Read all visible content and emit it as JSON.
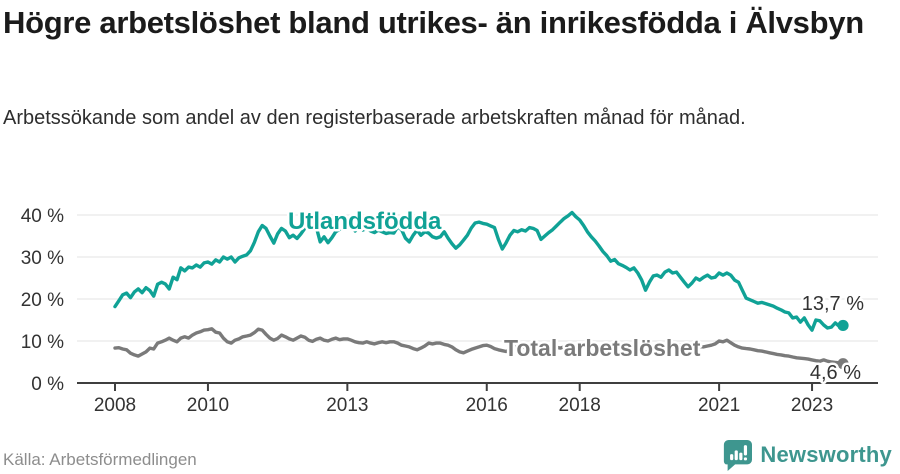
{
  "header": {
    "title": "Högre arbetslöshet bland utrikes- än inrikesfödda i Älvsbyn",
    "subtitle": "Arbetssökande som andel av den registerbaserade arbetskraften månad för månad."
  },
  "footer": {
    "source": "Källa: Arbetsförmedlingen",
    "brand": "Newsworthy"
  },
  "colors": {
    "accent_teal": "#10A296",
    "series_gray": "#7A7A7A",
    "logo_teal": "#3E968F",
    "axis_dark": "#3f3f3f",
    "gridline": "#e3e3e3",
    "tick_label": "#333333"
  },
  "chart_data": {
    "type": "line",
    "unit": "%",
    "x_months_start": "2008-01",
    "x_months_end": "2023-09",
    "x_tick_years": [
      2008,
      2010,
      2013,
      2016,
      2018,
      2021,
      2023
    ],
    "x_tick_labels": [
      "2008",
      "2010",
      "2013",
      "2016",
      "2018",
      "2021",
      "2023"
    ],
    "y_ticks": [
      0,
      10,
      20,
      30,
      40
    ],
    "y_tick_suffix": " %",
    "ylim": [
      0,
      42
    ],
    "grid": true,
    "legend_position": "inline-labels",
    "series": [
      {
        "name": "Utlandsfödda",
        "color": "#10A296",
        "end_label": "13,7 %",
        "end_value": 13.7,
        "values": [
          18.2,
          19.6,
          21.0,
          21.4,
          20.3,
          21.7,
          22.4,
          21.5,
          22.7,
          22.0,
          20.7,
          23.5,
          24.0,
          23.6,
          22.4,
          25.2,
          24.6,
          27.4,
          26.7,
          27.6,
          27.4,
          28.1,
          27.6,
          28.6,
          28.8,
          28.3,
          29.3,
          28.8,
          30.0,
          29.5,
          30.0,
          28.8,
          29.8,
          30.2,
          30.5,
          31.5,
          33.5,
          36.0,
          37.5,
          36.8,
          35.0,
          33.3,
          35.5,
          36.8,
          36.2,
          34.6,
          35.2,
          34.4,
          35.5,
          36.8,
          37.9,
          38.2,
          37.0,
          33.6,
          34.8,
          33.4,
          34.6,
          36.0,
          36.6,
          37.2,
          38.1,
          37.4,
          36.2,
          37.0,
          36.4,
          36.8,
          36.2,
          35.8,
          36.4,
          36.0,
          35.6,
          35.8,
          35.7,
          37.2,
          36.5,
          34.5,
          33.6,
          35.2,
          36.4,
          35.2,
          36.0,
          35.7,
          34.8,
          34.5,
          34.8,
          36.0,
          34.5,
          33.2,
          32.1,
          32.9,
          34.0,
          35.2,
          36.9,
          38.1,
          38.3,
          38.0,
          37.8,
          37.4,
          37.0,
          34.2,
          31.9,
          33.4,
          35.2,
          36.3,
          36.0,
          36.5,
          36.2,
          37.0,
          36.8,
          36.3,
          34.2,
          35.0,
          35.8,
          36.5,
          37.4,
          38.3,
          39.2,
          39.8,
          40.6,
          39.6,
          38.8,
          37.5,
          36.0,
          34.8,
          33.8,
          32.6,
          31.3,
          30.3,
          29.0,
          29.4,
          28.4,
          28.0,
          27.5,
          26.9,
          27.4,
          26.2,
          24.5,
          22.1,
          24.0,
          25.5,
          25.7,
          25.2,
          26.4,
          26.9,
          26.2,
          26.4,
          25.2,
          24.0,
          22.9,
          23.8,
          25.0,
          24.5,
          25.2,
          25.7,
          25.0,
          25.2,
          26.2,
          25.7,
          26.2,
          25.7,
          24.5,
          24.0,
          22.1,
          20.2,
          19.8,
          19.4,
          19.0,
          19.2,
          18.9,
          18.6,
          18.3,
          17.8,
          17.4,
          16.9,
          16.7,
          15.5,
          15.7,
          14.5,
          15.5,
          13.8,
          12.6,
          15.0,
          14.8,
          13.8,
          13.1,
          13.3,
          14.3,
          13.5,
          13.7
        ]
      },
      {
        "name": "Total arbetslöshet",
        "color": "#7A7A7A",
        "end_label": "4,6 %",
        "end_value": 4.6,
        "values": [
          8.3,
          8.4,
          8.1,
          7.9,
          7.1,
          6.7,
          6.4,
          6.9,
          7.4,
          8.3,
          8.1,
          9.5,
          9.8,
          10.2,
          10.7,
          10.2,
          9.8,
          10.7,
          11.0,
          10.7,
          11.4,
          11.9,
          12.2,
          12.6,
          12.7,
          12.9,
          12.1,
          11.9,
          10.7,
          9.8,
          9.5,
          10.2,
          10.5,
          11.0,
          11.2,
          11.4,
          12.0,
          12.8,
          12.6,
          11.6,
          10.7,
          10.2,
          10.6,
          11.4,
          11.0,
          10.5,
          10.2,
          10.7,
          11.2,
          10.9,
          10.2,
          9.9,
          10.4,
          10.7,
          10.2,
          10.0,
          10.4,
          10.7,
          10.3,
          10.5,
          10.5,
          10.2,
          9.8,
          9.6,
          9.5,
          9.8,
          9.5,
          9.3,
          9.6,
          9.8,
          9.6,
          9.8,
          9.8,
          9.5,
          9.0,
          8.8,
          8.6,
          8.2,
          7.9,
          8.3,
          8.8,
          9.5,
          9.3,
          9.5,
          9.5,
          9.2,
          9.0,
          8.6,
          7.9,
          7.4,
          7.2,
          7.6,
          8.0,
          8.3,
          8.6,
          8.9,
          9.0,
          8.7,
          8.2,
          7.9,
          7.7,
          7.5,
          7.9,
          8.4,
          8.8,
          8.6,
          8.4,
          8.7,
          8.9,
          8.6,
          8.3,
          8.1,
          8.4,
          8.7,
          8.5,
          8.3,
          8.6,
          8.8,
          8.6,
          8.8,
          9.0,
          8.8,
          8.5,
          8.3,
          8.1,
          8.0,
          7.8,
          7.7,
          7.9,
          8.1,
          8.0,
          8.2,
          8.3,
          8.1,
          7.9,
          7.7,
          7.5,
          7.4,
          7.6,
          7.8,
          7.7,
          7.9,
          8.1,
          8.3,
          8.4,
          8.6,
          9.0,
          9.3,
          9.2,
          9.0,
          8.8,
          8.7,
          8.6,
          8.8,
          9.0,
          9.3,
          10.0,
          9.8,
          10.2,
          9.6,
          9.0,
          8.6,
          8.3,
          8.2,
          8.1,
          7.9,
          7.7,
          7.6,
          7.4,
          7.2,
          7.0,
          6.8,
          6.7,
          6.5,
          6.4,
          6.2,
          6.0,
          5.9,
          5.8,
          5.7,
          5.5,
          5.3,
          5.2,
          5.5,
          5.2,
          5.0,
          4.9,
          4.8,
          4.6
        ]
      }
    ]
  }
}
